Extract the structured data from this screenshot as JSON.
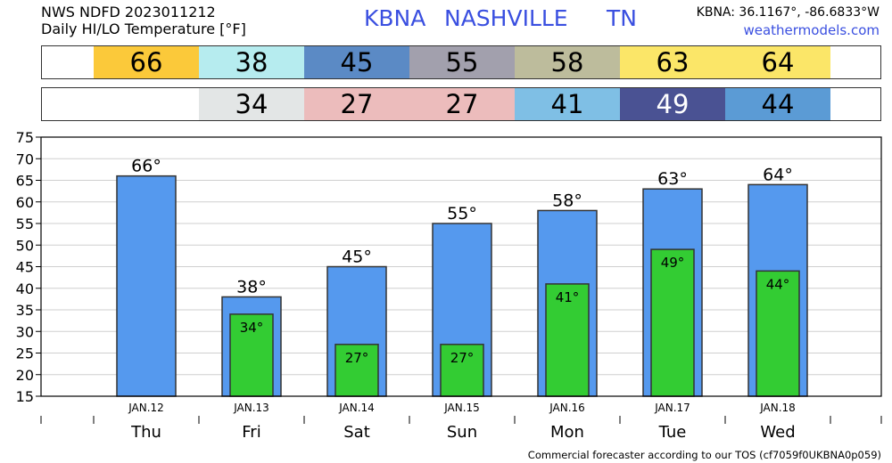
{
  "header": {
    "line1": "NWS NDFD 2023011212",
    "line2": "Daily HI/LO Temperature [°F]",
    "station": "KBNA",
    "city": "NASHVILLE",
    "state": "TN",
    "coords": "KBNA: 36.1167°, -86.6833°W",
    "site": "weathermodels.com"
  },
  "colors": {
    "hi_bar": "#5599ee",
    "lo_bar": "#33cc33",
    "bar_outline": "#333333",
    "grid": "#cfcfcf",
    "title_blue": "#3a4fe0"
  },
  "hi_row": [
    {
      "value": "66",
      "color": "#fbc93a",
      "dark": false
    },
    {
      "value": "38",
      "color": "#b6ecef",
      "dark": false
    },
    {
      "value": "45",
      "color": "#5b8ac5",
      "dark": false
    },
    {
      "value": "55",
      "color": "#a2a0ad",
      "dark": false
    },
    {
      "value": "58",
      "color": "#bdbc9c",
      "dark": false
    },
    {
      "value": "63",
      "color": "#fbe668",
      "dark": false
    },
    {
      "value": "64",
      "color": "#fbe668",
      "dark": false
    }
  ],
  "lo_row": [
    {
      "value": "",
      "color": "#ffffff",
      "dark": false
    },
    {
      "value": "34",
      "color": "#e3e6e6",
      "dark": false
    },
    {
      "value": "27",
      "color": "#ecbcbc",
      "dark": false
    },
    {
      "value": "27",
      "color": "#ecbcbc",
      "dark": false
    },
    {
      "value": "41",
      "color": "#7fbfe5",
      "dark": false
    },
    {
      "value": "49",
      "color": "#4a5293",
      "dark": true
    },
    {
      "value": "44",
      "color": "#5b9bd5",
      "dark": false
    }
  ],
  "chart_data": {
    "type": "bar",
    "categories": [
      "Thu",
      "Fri",
      "Sat",
      "Sun",
      "Mon",
      "Tue",
      "Wed"
    ],
    "dates": [
      "JAN.12",
      "JAN.13",
      "JAN.14",
      "JAN.15",
      "JAN.16",
      "JAN.17",
      "JAN.18"
    ],
    "series": [
      {
        "values": [
          66,
          38,
          45,
          55,
          58,
          63,
          64
        ]
      },
      {
        "values": [
          null,
          34,
          27,
          27,
          41,
          49,
          44
        ]
      }
    ],
    "ylim": [
      15,
      75
    ],
    "yticks": [
      15,
      20,
      25,
      30,
      35,
      40,
      45,
      50,
      55,
      60,
      65,
      70,
      75
    ],
    "grid": true,
    "degree_suffix": "°"
  },
  "footer": "Commercial forecaster according to our TOS (cf7059f0UKBNA0p059)"
}
